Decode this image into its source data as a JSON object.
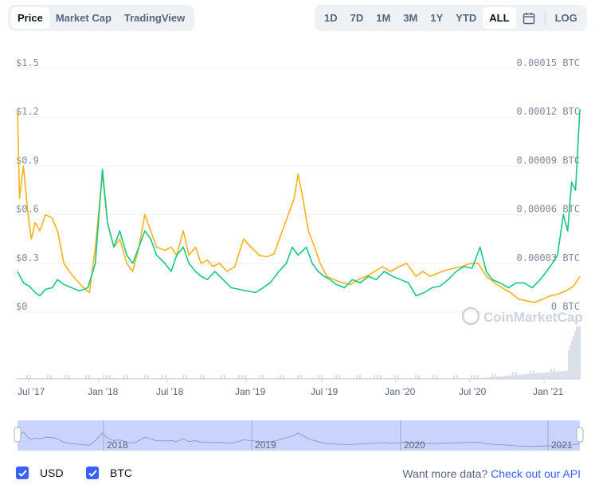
{
  "tabs": {
    "price": "Price",
    "market_cap": "Market Cap",
    "trading_view": "TradingView"
  },
  "ranges": [
    "1D",
    "7D",
    "1M",
    "3M",
    "1Y",
    "YTD",
    "ALL"
  ],
  "active_range": "ALL",
  "log_label": "LOG",
  "legend": {
    "usd": "USD",
    "btc": "BTC"
  },
  "footer": {
    "text": "Want more data?",
    "link": "Check out our API"
  },
  "watermark": "CoinMarketCap",
  "colors": {
    "usd": "#f7b21a",
    "btc": "#16c784",
    "accent": "#3861fb",
    "navigator": "#c9d3fb"
  },
  "chart_data": {
    "type": "line",
    "x_ticks": [
      "Jul '17",
      "Jan '18",
      "Jul '18",
      "Jan '19",
      "Jul '19",
      "Jan '20",
      "Jul '20",
      "Jan '21"
    ],
    "y_left_ticks": [
      "$0",
      "$0.3",
      "$0.6",
      "$0.9",
      "$1.2",
      "$1.5"
    ],
    "y_right_ticks": [
      "0 BTC",
      "0.00003 BTC",
      "0.00006 BTC",
      "0.00009 BTC",
      "0.00012 BTC",
      "0.00015 BTC"
    ],
    "y_left_range": [
      0,
      1.5
    ],
    "y_right_range": [
      0,
      0.00015
    ],
    "x_range": [
      "2017-06-05",
      "2021-05-06"
    ],
    "navigator_years": [
      "2018",
      "2019",
      "2020",
      "2021"
    ],
    "series": [
      {
        "name": "USD",
        "points": [
          [
            "2017-06-05",
            1.24
          ],
          [
            "2017-06-10",
            0.7
          ],
          [
            "2017-06-20",
            0.9
          ],
          [
            "2017-07-01",
            0.62
          ],
          [
            "2017-07-10",
            0.45
          ],
          [
            "2017-07-20",
            0.55
          ],
          [
            "2017-08-01",
            0.5
          ],
          [
            "2017-08-15",
            0.6
          ],
          [
            "2017-09-01",
            0.58
          ],
          [
            "2017-09-15",
            0.5
          ],
          [
            "2017-10-01",
            0.3
          ],
          [
            "2017-10-15",
            0.25
          ],
          [
            "2017-11-01",
            0.2
          ],
          [
            "2017-11-20",
            0.15
          ],
          [
            "2017-12-05",
            0.12
          ],
          [
            "2017-12-20",
            0.4
          ],
          [
            "2018-01-07",
            0.85
          ],
          [
            "2018-01-20",
            0.55
          ],
          [
            "2018-02-05",
            0.4
          ],
          [
            "2018-02-20",
            0.45
          ],
          [
            "2018-03-10",
            0.3
          ],
          [
            "2018-03-25",
            0.25
          ],
          [
            "2018-04-10",
            0.4
          ],
          [
            "2018-04-25",
            0.6
          ],
          [
            "2018-05-10",
            0.5
          ],
          [
            "2018-05-25",
            0.4
          ],
          [
            "2018-06-15",
            0.38
          ],
          [
            "2018-07-01",
            0.4
          ],
          [
            "2018-07-15",
            0.35
          ],
          [
            "2018-08-01",
            0.5
          ],
          [
            "2018-08-15",
            0.35
          ],
          [
            "2018-09-01",
            0.4
          ],
          [
            "2018-09-15",
            0.3
          ],
          [
            "2018-10-01",
            0.32
          ],
          [
            "2018-10-15",
            0.28
          ],
          [
            "2018-11-01",
            0.3
          ],
          [
            "2018-11-20",
            0.25
          ],
          [
            "2018-12-10",
            0.28
          ],
          [
            "2019-01-01",
            0.45
          ],
          [
            "2019-01-20",
            0.4
          ],
          [
            "2019-02-10",
            0.35
          ],
          [
            "2019-03-01",
            0.34
          ],
          [
            "2019-03-20",
            0.36
          ],
          [
            "2019-04-10",
            0.5
          ],
          [
            "2019-04-25",
            0.6
          ],
          [
            "2019-05-10",
            0.7
          ],
          [
            "2019-05-20",
            0.85
          ],
          [
            "2019-06-01",
            0.7
          ],
          [
            "2019-06-15",
            0.5
          ],
          [
            "2019-07-01",
            0.4
          ],
          [
            "2019-07-15",
            0.3
          ],
          [
            "2019-08-01",
            0.22
          ],
          [
            "2019-08-20",
            0.2
          ],
          [
            "2019-09-10",
            0.18
          ],
          [
            "2019-10-01",
            0.17
          ],
          [
            "2019-10-20",
            0.2
          ],
          [
            "2019-11-10",
            0.22
          ],
          [
            "2019-12-01",
            0.25
          ],
          [
            "2019-12-20",
            0.28
          ],
          [
            "2020-01-10",
            0.25
          ],
          [
            "2020-02-01",
            0.28
          ],
          [
            "2020-02-20",
            0.3
          ],
          [
            "2020-03-15",
            0.22
          ],
          [
            "2020-04-01",
            0.25
          ],
          [
            "2020-04-20",
            0.22
          ],
          [
            "2020-05-10",
            0.24
          ],
          [
            "2020-06-01",
            0.26
          ],
          [
            "2020-06-20",
            0.27
          ],
          [
            "2020-07-10",
            0.28
          ],
          [
            "2020-08-01",
            0.3
          ],
          [
            "2020-08-20",
            0.3
          ],
          [
            "2020-09-10",
            0.22
          ],
          [
            "2020-10-01",
            0.18
          ],
          [
            "2020-10-20",
            0.15
          ],
          [
            "2020-11-10",
            0.12
          ],
          [
            "2020-12-01",
            0.08
          ],
          [
            "2020-12-20",
            0.07
          ],
          [
            "2021-01-10",
            0.06
          ],
          [
            "2021-02-01",
            0.08
          ],
          [
            "2021-02-20",
            0.1
          ],
          [
            "2021-03-10",
            0.11
          ],
          [
            "2021-04-01",
            0.13
          ],
          [
            "2021-04-20",
            0.16
          ],
          [
            "2021-05-06",
            0.22
          ]
        ]
      },
      {
        "name": "BTC",
        "points": [
          [
            "2017-06-05",
            2.5e-05
          ],
          [
            "2017-06-20",
            1.8e-05
          ],
          [
            "2017-07-05",
            1.6e-05
          ],
          [
            "2017-07-20",
            1.2e-05
          ],
          [
            "2017-08-01",
            1e-05
          ],
          [
            "2017-08-15",
            1.4e-05
          ],
          [
            "2017-09-01",
            1.5e-05
          ],
          [
            "2017-09-15",
            2e-05
          ],
          [
            "2017-10-01",
            1.7e-05
          ],
          [
            "2017-10-20",
            1.5e-05
          ],
          [
            "2017-11-10",
            1.3e-05
          ],
          [
            "2017-12-01",
            1.5e-05
          ],
          [
            "2017-12-20",
            3e-05
          ],
          [
            "2018-01-07",
            8.8e-05
          ],
          [
            "2018-01-20",
            5.5e-05
          ],
          [
            "2018-02-05",
            4e-05
          ],
          [
            "2018-02-20",
            5e-05
          ],
          [
            "2018-03-10",
            3.5e-05
          ],
          [
            "2018-03-25",
            3e-05
          ],
          [
            "2018-04-10",
            4e-05
          ],
          [
            "2018-04-25",
            5e-05
          ],
          [
            "2018-05-10",
            4.5e-05
          ],
          [
            "2018-05-25",
            3.5e-05
          ],
          [
            "2018-06-15",
            3e-05
          ],
          [
            "2018-07-01",
            2.5e-05
          ],
          [
            "2018-07-15",
            3.5e-05
          ],
          [
            "2018-08-01",
            4e-05
          ],
          [
            "2018-08-15",
            3e-05
          ],
          [
            "2018-09-01",
            2.5e-05
          ],
          [
            "2018-09-15",
            2.2e-05
          ],
          [
            "2018-10-01",
            2e-05
          ],
          [
            "2018-10-20",
            2.5e-05
          ],
          [
            "2018-11-10",
            2e-05
          ],
          [
            "2018-12-01",
            1.5e-05
          ],
          [
            "2018-12-20",
            1.4e-05
          ],
          [
            "2019-01-10",
            1.3e-05
          ],
          [
            "2019-02-01",
            1.2e-05
          ],
          [
            "2019-02-20",
            1.5e-05
          ],
          [
            "2019-03-10",
            1.8e-05
          ],
          [
            "2019-04-01",
            2.5e-05
          ],
          [
            "2019-04-20",
            3e-05
          ],
          [
            "2019-05-05",
            4e-05
          ],
          [
            "2019-05-20",
            3.5e-05
          ],
          [
            "2019-06-10",
            4e-05
          ],
          [
            "2019-06-25",
            3e-05
          ],
          [
            "2019-07-10",
            2.5e-05
          ],
          [
            "2019-07-25",
            2.2e-05
          ],
          [
            "2019-08-10",
            2e-05
          ],
          [
            "2019-08-25",
            1.7e-05
          ],
          [
            "2019-09-15",
            1.5e-05
          ],
          [
            "2019-10-05",
            2e-05
          ],
          [
            "2019-10-25",
            1.8e-05
          ],
          [
            "2019-11-15",
            2.2e-05
          ],
          [
            "2019-12-05",
            2e-05
          ],
          [
            "2019-12-25",
            2.5e-05
          ],
          [
            "2020-01-15",
            2.2e-05
          ],
          [
            "2020-02-05",
            2e-05
          ],
          [
            "2020-02-25",
            1.8e-05
          ],
          [
            "2020-03-15",
            1e-05
          ],
          [
            "2020-04-05",
            1.2e-05
          ],
          [
            "2020-04-25",
            1.5e-05
          ],
          [
            "2020-05-15",
            1.6e-05
          ],
          [
            "2020-06-05",
            2e-05
          ],
          [
            "2020-06-25",
            2.5e-05
          ],
          [
            "2020-07-15",
            2.8e-05
          ],
          [
            "2020-08-05",
            2.7e-05
          ],
          [
            "2020-08-25",
            4e-05
          ],
          [
            "2020-09-10",
            2.5e-05
          ],
          [
            "2020-09-25",
            2e-05
          ],
          [
            "2020-10-15",
            1.8e-05
          ],
          [
            "2020-11-05",
            1.5e-05
          ],
          [
            "2020-11-25",
            1.8e-05
          ],
          [
            "2020-12-15",
            1.8e-05
          ],
          [
            "2021-01-05",
            1.5e-05
          ],
          [
            "2021-01-25",
            2e-05
          ],
          [
            "2021-02-10",
            2.5e-05
          ],
          [
            "2021-02-25",
            3e-05
          ],
          [
            "2021-03-10",
            3.5e-05
          ],
          [
            "2021-03-25",
            6e-05
          ],
          [
            "2021-04-05",
            5e-05
          ],
          [
            "2021-04-15",
            8e-05
          ],
          [
            "2021-04-25",
            7.5e-05
          ],
          [
            "2021-05-06",
            0.000125
          ]
        ]
      }
    ]
  }
}
